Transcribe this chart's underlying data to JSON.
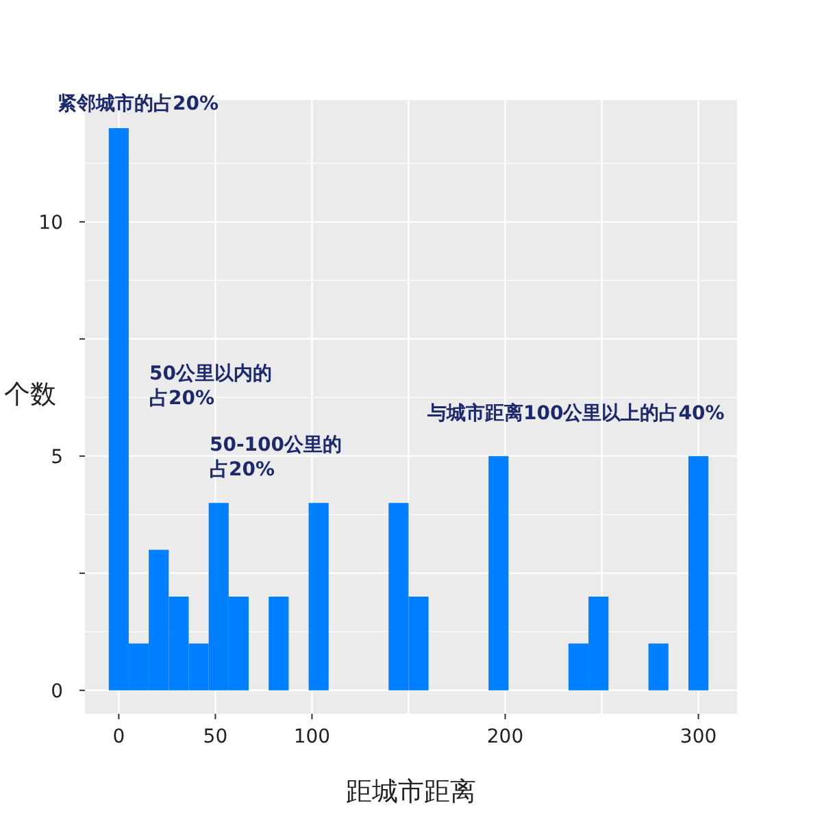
{
  "chart_data": {
    "type": "histogram",
    "xlabel": "距城市距离",
    "ylabel": "个数",
    "bins": [
      -5.17,
      5.17,
      15.52,
      25.86,
      36.21,
      46.55,
      56.9,
      67.24,
      77.59,
      87.93,
      98.28,
      108.62,
      118.97,
      129.31,
      139.66,
      150.0,
      160.34,
      170.69,
      181.03,
      191.38,
      201.72,
      212.07,
      222.41,
      232.76,
      243.1,
      253.45,
      263.79,
      274.14,
      284.48,
      294.83,
      305.17
    ],
    "values": [
      12,
      1,
      3,
      2,
      1,
      4,
      2,
      0,
      2,
      0,
      4,
      0,
      0,
      0,
      4,
      2,
      0,
      0,
      0,
      5,
      0,
      0,
      0,
      1,
      2,
      0,
      0,
      1,
      0,
      5
    ],
    "color": "#007fff",
    "xlim": [
      -17.5,
      320
    ],
    "xticks": [
      0,
      50,
      100,
      {
        "value": 150,
        "label": null
      },
      200,
      {
        "value": 250,
        "label": null
      },
      300
    ],
    "ylim": [
      -0.5,
      12.6
    ],
    "yticks": [
      0,
      {
        "value": 2.5,
        "label": null
      },
      5,
      {
        "value": 7.5,
        "label": null
      },
      10
    ],
    "grid": true,
    "annotations": [
      "紧邻城市的占20%",
      "50公里以内的占20%",
      "50-100公里的占20%",
      "与城市距离100公里以上的占40%"
    ]
  }
}
